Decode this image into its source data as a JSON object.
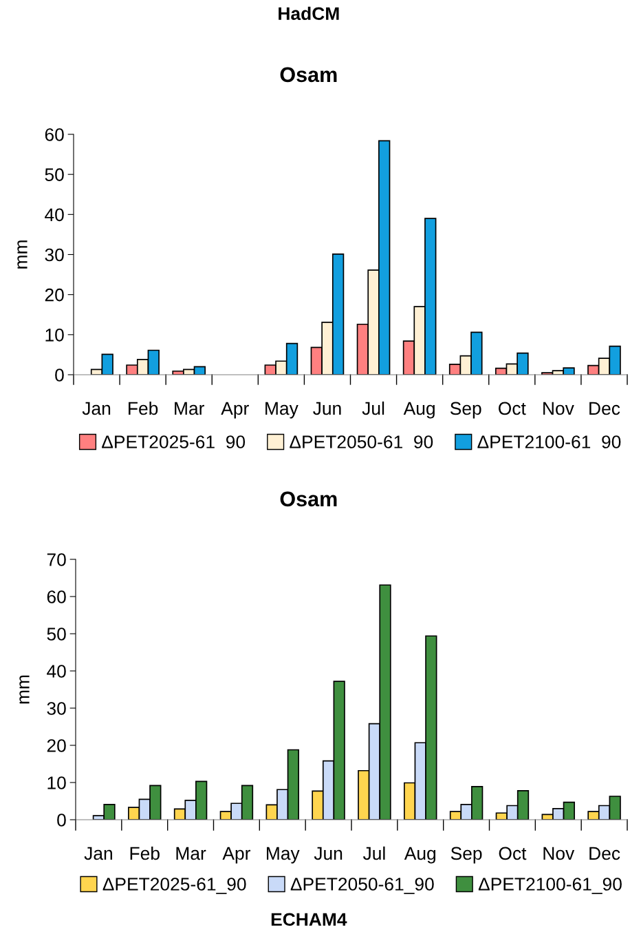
{
  "chart_data": [
    {
      "type": "bar",
      "title": "HadCM",
      "subtitle": "Osam",
      "ylabel": "mm",
      "categories": [
        "Jan",
        "Feb",
        "Mar",
        "Apr",
        "May",
        "Jun",
        "Jul",
        "Aug",
        "Sep",
        "Oct",
        "Nov",
        "Dec"
      ],
      "series": [
        {
          "name": "ΔPET2025-61  90",
          "color": "#ff8080",
          "values": [
            0,
            2.4,
            0.9,
            0,
            2.4,
            6.8,
            12.6,
            8.4,
            2.6,
            1.6,
            0.5,
            2.3
          ]
        },
        {
          "name": "ΔPET2050-61  90",
          "color": "#fff0d4",
          "values": [
            1.3,
            3.8,
            1.3,
            0,
            3.4,
            13.1,
            26.1,
            17.0,
            4.7,
            2.7,
            1.0,
            4.1
          ]
        },
        {
          "name": "ΔPET2100-61  90",
          "color": "#129fdf",
          "values": [
            5.1,
            6.1,
            2.0,
            0,
            7.8,
            30.1,
            58.4,
            39.0,
            10.6,
            5.4,
            1.7,
            7.1
          ]
        }
      ],
      "ylim": [
        0,
        60
      ],
      "yticks": [
        0,
        10,
        20,
        30,
        40,
        50,
        60
      ],
      "grid": false,
      "legend": "bottom"
    },
    {
      "type": "bar",
      "title": "Osam",
      "ylabel": "mm",
      "annotations": [
        "ECHAM4"
      ],
      "categories": [
        "Jan",
        "Feb",
        "Mar",
        "Apr",
        "May",
        "Jun",
        "Jul",
        "Aug",
        "Sep",
        "Oct",
        "Nov",
        "Dec"
      ],
      "series": [
        {
          "name": "ΔPET2025-61_90",
          "color": "#ffd54f",
          "values": [
            0,
            3.3,
            2.9,
            2.2,
            4.0,
            7.7,
            13.2,
            9.9,
            2.2,
            1.8,
            1.4,
            2.2
          ]
        },
        {
          "name": "ΔPET2050-61_90",
          "color": "#c9daf8",
          "values": [
            1.1,
            5.5,
            5.2,
            4.4,
            8.1,
            15.8,
            25.8,
            20.7,
            4.1,
            3.8,
            3.0,
            3.8
          ]
        },
        {
          "name": "ΔPET2100-61_90",
          "color": "#3f8f3f",
          "values": [
            4.1,
            9.2,
            10.3,
            9.2,
            18.8,
            37.2,
            63.1,
            49.4,
            8.9,
            7.8,
            4.7,
            6.3
          ]
        }
      ],
      "ylim": [
        0,
        70
      ],
      "yticks": [
        0,
        10,
        20,
        30,
        40,
        50,
        60,
        70
      ],
      "grid": false,
      "legend": "bottom"
    }
  ]
}
